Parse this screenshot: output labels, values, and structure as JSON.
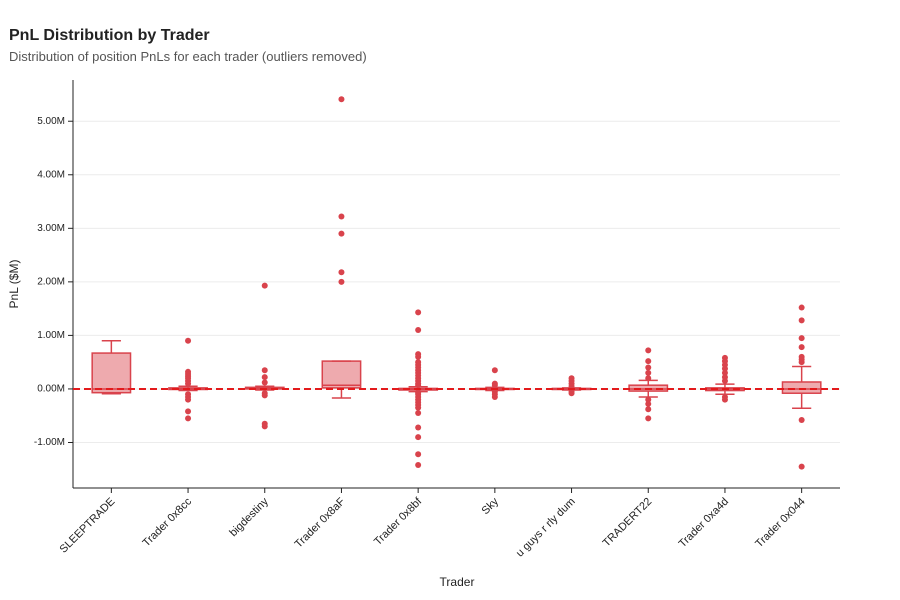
{
  "chart_data": {
    "type": "box",
    "title": "PnL Distribution by Trader",
    "subtitle": "Distribution of position PnLs for each trader (outliers removed)",
    "x_label": "Trader",
    "y_label": "PnL ($M)",
    "color": "#d9434c",
    "zero_line": {
      "value": 0,
      "color": "#e31a1c"
    },
    "grid": true,
    "ylim": [
      -1.85,
      5.77
    ],
    "yticks": [
      {
        "value": -1,
        "label": "-1.00M"
      },
      {
        "value": 0,
        "label": "0.00M"
      },
      {
        "value": 1,
        "label": "1.00M"
      },
      {
        "value": 2,
        "label": "2.00M"
      },
      {
        "value": 3,
        "label": "3.00M"
      },
      {
        "value": 4,
        "label": "4.00M"
      },
      {
        "value": 5,
        "label": "5.00M"
      }
    ],
    "categories": [
      "SLEEPTRADE",
      "Trader 0x8cc",
      "bigdestiny",
      "Trader 0x8aF",
      "Trader 0x8bf",
      "Sky",
      "u guys r rly dum",
      "TRADERT22",
      "Trader 0xa4d",
      "Trader 0x044"
    ],
    "boxes": [
      {
        "whislo": -0.09,
        "q1": -0.07,
        "med": 0.0,
        "q3": 0.67,
        "whishi": 0.9,
        "fliers": []
      },
      {
        "whislo": -0.03,
        "q1": -0.01,
        "med": 0.0,
        "q3": 0.02,
        "whishi": 0.05,
        "fliers": [
          0.9,
          0.32,
          0.28,
          0.24,
          0.2,
          0.15,
          0.1,
          -0.1,
          -0.15,
          -0.2,
          -0.42,
          -0.55
        ]
      },
      {
        "whislo": -0.02,
        "q1": 0.0,
        "med": 0.01,
        "q3": 0.03,
        "whishi": 0.05,
        "fliers": [
          1.93,
          0.35,
          0.22,
          0.12,
          -0.08,
          -0.12,
          -0.65,
          -0.7
        ]
      },
      {
        "whislo": -0.17,
        "q1": 0.02,
        "med": 0.07,
        "q3": 0.52,
        "whishi": 0.52,
        "fliers": [
          5.41,
          3.22,
          2.9,
          2.18,
          2.0
        ]
      },
      {
        "whislo": -0.05,
        "q1": -0.02,
        "med": 0.0,
        "q3": 0.01,
        "whishi": 0.04,
        "fliers": [
          1.43,
          1.1,
          0.65,
          0.6,
          0.5,
          0.45,
          0.4,
          0.35,
          0.3,
          0.25,
          0.2,
          0.15,
          0.1,
          0.07,
          -0.07,
          -0.1,
          -0.15,
          -0.2,
          -0.25,
          -0.3,
          -0.35,
          -0.45,
          -0.72,
          -0.9,
          -1.22,
          -1.42
        ]
      },
      {
        "whislo": -0.03,
        "q1": -0.01,
        "med": 0.0,
        "q3": 0.01,
        "whishi": 0.03,
        "fliers": [
          0.35,
          0.1,
          0.07,
          -0.05,
          -0.1,
          -0.15
        ]
      },
      {
        "whislo": -0.02,
        "q1": -0.01,
        "med": 0.0,
        "q3": 0.01,
        "whishi": 0.02,
        "fliers": [
          0.2,
          0.15,
          0.1,
          0.05,
          -0.05,
          -0.08
        ]
      },
      {
        "whislo": -0.15,
        "q1": -0.04,
        "med": 0.0,
        "q3": 0.07,
        "whishi": 0.16,
        "fliers": [
          0.72,
          0.52,
          0.4,
          0.3,
          0.2,
          -0.2,
          -0.28,
          -0.38,
          -0.55
        ]
      },
      {
        "whislo": -0.1,
        "q1": -0.03,
        "med": 0.0,
        "q3": 0.02,
        "whishi": 0.09,
        "fliers": [
          0.58,
          0.52,
          0.45,
          0.38,
          0.3,
          0.22,
          0.15,
          -0.15,
          -0.2
        ]
      },
      {
        "whislo": -0.36,
        "q1": -0.08,
        "med": 0.0,
        "q3": 0.13,
        "whishi": 0.42,
        "fliers": [
          1.52,
          1.28,
          0.95,
          0.78,
          0.6,
          0.55,
          0.5,
          -0.58,
          -1.45
        ]
      }
    ]
  }
}
